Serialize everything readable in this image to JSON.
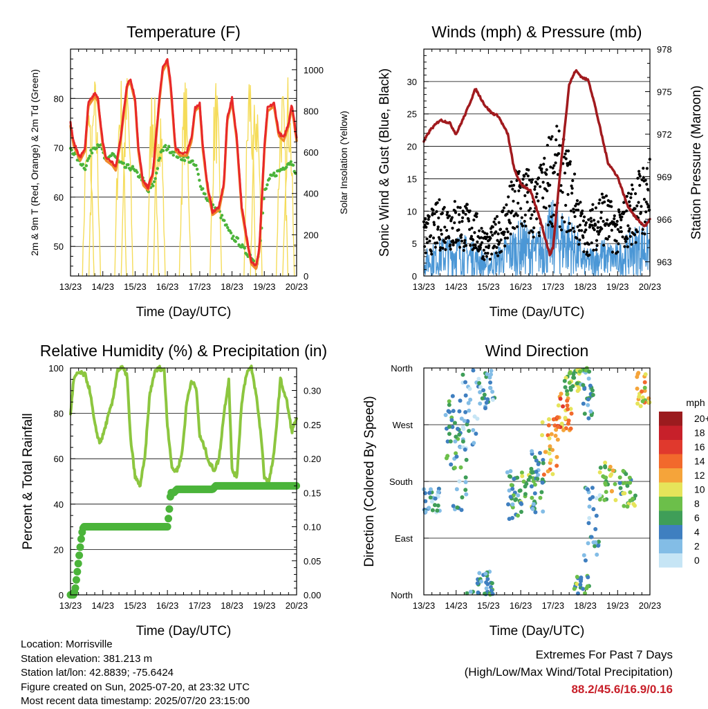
{
  "chart_data": [
    {
      "type": "line",
      "title": "Temperature (F)",
      "xlabel": "Time (Day/UTC)",
      "ylabel": "2m & 9m T (Red, Orange) & 2m Td (Green)",
      "y2label": "Solar Insolation (Yellow)",
      "x_ticks": [
        "13/23",
        "14/23",
        "15/23",
        "16/23",
        "17/23",
        "18/23",
        "19/23",
        "20/23"
      ],
      "ylim": [
        44,
        90
      ],
      "y_ticks": [
        50,
        60,
        70,
        80
      ],
      "y2lim": [
        0,
        1100
      ],
      "y2_ticks": [
        0,
        200,
        400,
        600,
        800,
        1000
      ],
      "grid": "horizontal",
      "colors": {
        "t2m": "#e8282a",
        "t9m": "#f08a2c",
        "td": "#4bb43a",
        "solar": "#f5dc5a"
      },
      "series": [
        {
          "key": "t2m",
          "x": [
            0,
            0.1,
            0.3,
            0.45,
            0.55,
            0.75,
            0.85,
            1.0,
            1.1,
            1.3,
            1.4,
            1.55,
            1.75,
            1.85,
            2.0,
            2.1,
            2.25,
            2.4,
            2.55,
            2.75,
            2.85,
            3.0,
            3.1,
            3.25,
            3.4,
            3.6,
            3.75,
            3.85,
            4.0,
            4.1,
            4.25,
            4.4,
            4.6,
            4.75,
            4.85,
            5.0,
            5.15,
            5.3,
            5.45,
            5.6,
            5.75,
            5.85,
            6.0,
            6.1,
            6.3,
            6.45,
            6.6,
            6.75,
            6.85,
            7.0
          ],
          "y": [
            75,
            71,
            68,
            70,
            79,
            81,
            80,
            71,
            68,
            67,
            66,
            72,
            83,
            84,
            80,
            70,
            63,
            62,
            65,
            80,
            86,
            88,
            83,
            70,
            69,
            69,
            72,
            78,
            79,
            70,
            62,
            57,
            58,
            63,
            76,
            80,
            72,
            58,
            52,
            47,
            46,
            50,
            70,
            78,
            79,
            73,
            72,
            75,
            79,
            72
          ]
        },
        {
          "key": "td",
          "x": [
            0,
            0.2,
            0.45,
            0.7,
            0.9,
            1.1,
            1.3,
            1.5,
            1.7,
            1.9,
            2.0,
            2.2,
            2.4,
            2.6,
            2.75,
            2.9,
            3.0,
            3.2,
            3.4,
            3.6,
            3.75,
            3.9,
            4.0,
            4.2,
            4.4,
            4.6,
            4.75,
            4.9,
            5.0,
            5.2,
            5.4,
            5.6,
            5.75,
            5.9,
            6.0,
            6.2,
            6.4,
            6.6,
            6.75,
            6.9,
            7.0
          ],
          "y": [
            70,
            68,
            66,
            70,
            71,
            67,
            69,
            67,
            66,
            66,
            65,
            64,
            61,
            63,
            68,
            70,
            70,
            69,
            68,
            68,
            67,
            66,
            63,
            60,
            58,
            57,
            55,
            53,
            52,
            51,
            49,
            48,
            46,
            52,
            61,
            64,
            65,
            66,
            67,
            67,
            63
          ]
        },
        {
          "key": "solar",
          "peaks": [
            [
              0.55,
              920
            ],
            [
              0.75,
              980
            ],
            [
              1.55,
              1000
            ],
            [
              1.75,
              1020
            ],
            [
              2.55,
              1000
            ],
            [
              2.75,
              980
            ],
            [
              3.55,
              980
            ],
            [
              4.5,
              980
            ],
            [
              5.55,
              1070
            ],
            [
              5.75,
              980
            ],
            [
              6.55,
              960
            ],
            [
              6.75,
              1000
            ]
          ]
        }
      ]
    },
    {
      "type": "scatter",
      "title": "Winds (mph) & Pressure (mb)",
      "xlabel": "Time (Day/UTC)",
      "ylabel": "Sonic Wind & Gust (Blue, Black)",
      "y2label": "Station Pressure (Maroon)",
      "x_ticks": [
        "13/23",
        "14/23",
        "15/23",
        "16/23",
        "17/23",
        "18/23",
        "19/23",
        "20/23"
      ],
      "ylim": [
        0,
        35
      ],
      "y_ticks": [
        0,
        5,
        10,
        15,
        20,
        25,
        30
      ],
      "y2lim": [
        962,
        978
      ],
      "y2_ticks": [
        963,
        966,
        969,
        972,
        975,
        978
      ],
      "grid": "horizontal",
      "colors": {
        "wind": "#4b97d6",
        "gust": "#000000",
        "pressure": "#a11a1e"
      },
      "pressure": {
        "x": [
          0,
          0.2,
          0.5,
          0.8,
          1.0,
          1.3,
          1.6,
          1.9,
          2.1,
          2.3,
          2.6,
          2.8,
          3.0,
          3.3,
          3.6,
          3.9,
          4.0,
          4.25,
          4.5,
          4.7,
          4.9,
          5.1,
          5.3,
          5.5,
          5.7,
          6.0,
          6.3,
          6.6,
          6.85,
          7.0
        ],
        "y": [
          971.5,
          972.3,
          973.0,
          972.8,
          972.0,
          973.5,
          975.2,
          974.0,
          973.5,
          973.3,
          972.0,
          969.5,
          968.5,
          968.0,
          966.0,
          963.5,
          964.0,
          970.0,
          975.5,
          976.5,
          976.0,
          975.8,
          974.0,
          972.0,
          970.0,
          969.0,
          967.0,
          966.0,
          965.5,
          966.0
        ]
      },
      "wind_envelope": {
        "x": [
          0,
          0.5,
          1,
          1.5,
          2,
          2.5,
          3,
          3.5,
          4,
          4.5,
          5,
          5.5,
          6,
          6.5,
          7
        ],
        "y": [
          4,
          6,
          7,
          6,
          3,
          6,
          9,
          7,
          12,
          10,
          4,
          6,
          5,
          8,
          9
        ]
      },
      "gust_envelope": {
        "x": [
          0,
          0.5,
          1,
          1.5,
          2,
          2.5,
          3,
          3.5,
          4,
          4.5,
          5,
          5.5,
          6,
          6.5,
          7
        ],
        "y": [
          8,
          11,
          11,
          10,
          6,
          11,
          17,
          14,
          22,
          18,
          8,
          13,
          9,
          14,
          18
        ]
      }
    },
    {
      "type": "line",
      "title": "Relative Humidity (%) & Precipitation (in)",
      "xlabel": "Time (Day/UTC)",
      "ylabel": "Percent & Total Rainfall",
      "x_ticks": [
        "13/23",
        "14/23",
        "15/23",
        "16/23",
        "17/23",
        "18/23",
        "19/23",
        "20/23"
      ],
      "ylim": [
        0,
        100
      ],
      "y_ticks": [
        0,
        20,
        40,
        60,
        80,
        100
      ],
      "y2lim": [
        0,
        0.333
      ],
      "y2_ticks": [
        "0.00",
        "0.05",
        "0.10",
        "0.15",
        "0.20",
        "0.25",
        "0.30"
      ],
      "grid": "horizontal",
      "colors": {
        "rh": "#8cc63f",
        "precip": "#4bb43a"
      },
      "rh": {
        "x": [
          0,
          0.1,
          0.25,
          0.45,
          0.6,
          0.75,
          0.9,
          1.0,
          1.15,
          1.3,
          1.45,
          1.6,
          1.75,
          1.85,
          2.0,
          2.15,
          2.3,
          2.45,
          2.6,
          2.75,
          2.9,
          3.0,
          3.15,
          3.3,
          3.45,
          3.6,
          3.75,
          3.9,
          4.0,
          4.15,
          4.3,
          4.45,
          4.6,
          4.75,
          4.9,
          5.0,
          5.15,
          5.3,
          5.45,
          5.6,
          5.75,
          5.9,
          6.0,
          6.15,
          6.3,
          6.5,
          6.7,
          6.85,
          7.0
        ],
        "y": [
          80,
          95,
          98,
          97,
          90,
          75,
          67,
          70,
          78,
          85,
          99,
          100,
          97,
          70,
          52,
          48,
          60,
          88,
          98,
          100,
          99,
          75,
          55,
          55,
          62,
          85,
          95,
          90,
          70,
          65,
          58,
          55,
          60,
          80,
          95,
          55,
          52,
          85,
          98,
          100,
          88,
          70,
          52,
          50,
          62,
          95,
          85,
          72,
          78
        ]
      },
      "precip": {
        "x": [
          0,
          0.1,
          0.15,
          0.2,
          0.25,
          0.3,
          0.35,
          0.4,
          0.5,
          1.0,
          2.0,
          3.0,
          3.05,
          3.1,
          3.2,
          3.3,
          4.0,
          4.4,
          4.5,
          5.0,
          6.0,
          7.0
        ],
        "y": [
          0,
          0,
          0.01,
          0.03,
          0.05,
          0.07,
          0.09,
          0.1,
          0.1,
          0.1,
          0.1,
          0.1,
          0.12,
          0.15,
          0.15,
          0.155,
          0.155,
          0.155,
          0.16,
          0.16,
          0.16,
          0.16
        ]
      }
    },
    {
      "type": "scatter",
      "title": "Wind Direction",
      "xlabel": "Time (Day/UTC)",
      "ylabel": "Direction (Colored By Speed)",
      "x_ticks": [
        "13/23",
        "14/23",
        "15/23",
        "16/23",
        "17/23",
        "18/23",
        "19/23",
        "20/23"
      ],
      "y_ticks": [
        "North",
        "East",
        "South",
        "West",
        "North"
      ],
      "ylim": [
        0,
        360
      ],
      "grid": "horizontal",
      "legend": {
        "title": "mph",
        "labels": [
          "20+",
          "18",
          "16",
          "14",
          "12",
          "10",
          "8",
          "6",
          "4",
          "2",
          "0"
        ],
        "colors": [
          "#9b1b1e",
          "#c7202a",
          "#e0392d",
          "#f2692c",
          "#f5a43a",
          "#e6e45a",
          "#6cbf4a",
          "#3f9e58",
          "#3f7fc0",
          "#83bde6",
          "#c6e5f5"
        ],
        "placement": "right"
      },
      "clusters": [
        [
          0.25,
          150,
          20,
          3
        ],
        [
          0.9,
          260,
          60,
          5
        ],
        [
          1.15,
          220,
          90,
          3
        ],
        [
          1.45,
          300,
          70,
          2
        ],
        [
          1.95,
          330,
          40,
          3
        ],
        [
          1.9,
          20,
          20,
          4
        ],
        [
          2.8,
          160,
          40,
          5
        ],
        [
          3.2,
          170,
          30,
          6
        ],
        [
          3.5,
          180,
          50,
          4
        ],
        [
          3.9,
          235,
          45,
          11
        ],
        [
          4.35,
          290,
          30,
          12
        ],
        [
          4.6,
          335,
          20,
          7
        ],
        [
          5.1,
          320,
          40,
          4
        ],
        [
          4.9,
          10,
          20,
          6
        ],
        [
          5.7,
          180,
          30,
          8
        ],
        [
          5.2,
          110,
          60,
          2
        ],
        [
          6.3,
          170,
          30,
          7
        ],
        [
          6.85,
          325,
          30,
          11
        ]
      ]
    }
  ],
  "info": {
    "location": "Location: Morrisville",
    "elevation": "Station elevation: 381.213 m",
    "latlon": "Station lat/lon: 42.8839; -75.6424",
    "created": "Figure created on Sun, 2025-07-20, at 23:32 UTC",
    "latest": "Most recent data timestamp: 2025/07/20 23:15:00"
  },
  "extremes": {
    "line1": "Extremes For Past 7 Days",
    "line2": "(High/Low/Max Wind/Total Precipitation)",
    "values": "88.2/45.6/16.9/0.16"
  }
}
